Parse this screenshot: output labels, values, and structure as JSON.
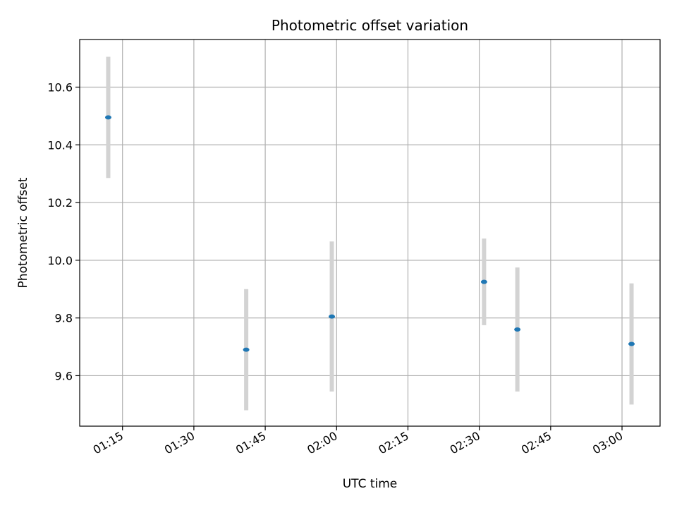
{
  "chart_data": {
    "type": "scatter",
    "title": "Photometric offset variation",
    "xlabel": "UTC time",
    "ylabel": "Photometric offset",
    "x_ticks": [
      "01:15",
      "01:30",
      "01:45",
      "02:00",
      "02:15",
      "02:30",
      "02:45",
      "03:00"
    ],
    "y_ticks": [
      "9.6",
      "9.8",
      "10.0",
      "10.2",
      "10.4",
      "10.6"
    ],
    "xlim": [
      "01:06",
      "03:08"
    ],
    "ylim": [
      9.425,
      10.765
    ],
    "grid": true,
    "series": [
      {
        "points": [
          {
            "x": "01:12",
            "y": 10.495,
            "err": 0.21
          },
          {
            "x": "01:41",
            "y": 9.69,
            "err": 0.21
          },
          {
            "x": "01:59",
            "y": 9.805,
            "err": 0.26
          },
          {
            "x": "02:31",
            "y": 9.925,
            "err": 0.15
          },
          {
            "x": "02:38",
            "y": 9.76,
            "err": 0.215
          },
          {
            "x": "03:02",
            "y": 9.71,
            "err": 0.21
          }
        ]
      }
    ],
    "colors": {
      "point": "#1f77b4",
      "errorbar": "#d3d3d3",
      "grid": "#b0b0b0"
    }
  }
}
